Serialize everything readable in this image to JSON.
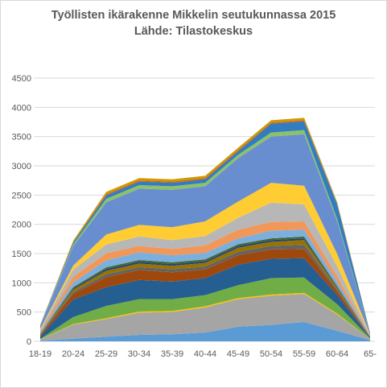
{
  "chart_data": {
    "type": "area",
    "stacked": true,
    "title": "Työllisten ikärakenne Mikkelin seutukunnassa 2015",
    "subtitle": "Lähde: Tilastokeskus",
    "categories": [
      "18-19",
      "20-24",
      "25-29",
      "30-34",
      "35-39",
      "40-44",
      "45-49",
      "50-54",
      "55-59",
      "60-64",
      "65-"
    ],
    "ylim": [
      0,
      4500
    ],
    "yticks": [
      0,
      500,
      1000,
      1500,
      2000,
      2500,
      3000,
      3500,
      4000,
      4500
    ],
    "grid": true,
    "legend": "none",
    "series": [
      {
        "color": "#5b9bd5",
        "values": [
          10,
          45,
          80,
          110,
          120,
          150,
          250,
          280,
          330,
          180,
          20
        ]
      },
      {
        "color": "#a5a5a5",
        "values": [
          20,
          240,
          300,
          380,
          380,
          430,
          470,
          500,
          480,
          280,
          20
        ]
      },
      {
        "color": "#ffc000",
        "values": [
          2,
          10,
          15,
          20,
          20,
          20,
          20,
          20,
          20,
          15,
          2
        ]
      },
      {
        "color": "#70ad47",
        "values": [
          10,
          120,
          210,
          210,
          200,
          190,
          220,
          280,
          260,
          160,
          10
        ]
      },
      {
        "color": "#255e91",
        "values": [
          40,
          300,
          320,
          330,
          300,
          290,
          350,
          330,
          330,
          160,
          10
        ]
      },
      {
        "color": "#9e480e",
        "values": [
          20,
          100,
          170,
          170,
          160,
          150,
          160,
          160,
          160,
          60,
          8
        ]
      },
      {
        "color": "#636363",
        "values": [
          10,
          30,
          50,
          50,
          50,
          50,
          60,
          60,
          70,
          30,
          5
        ]
      },
      {
        "color": "#997300",
        "values": [
          10,
          40,
          60,
          60,
          60,
          60,
          70,
          70,
          80,
          30,
          5
        ]
      },
      {
        "color": "#264478",
        "values": [
          5,
          20,
          30,
          30,
          30,
          30,
          30,
          30,
          30,
          15,
          3
        ]
      },
      {
        "color": "#43682b",
        "values": [
          5,
          20,
          30,
          30,
          30,
          30,
          30,
          30,
          30,
          15,
          3
        ]
      },
      {
        "color": "#7cafdd",
        "values": [
          20,
          80,
          120,
          130,
          120,
          110,
          100,
          130,
          120,
          80,
          5
        ]
      },
      {
        "color": "#f1975a",
        "values": [
          20,
          100,
          120,
          110,
          110,
          130,
          150,
          150,
          140,
          90,
          5
        ]
      },
      {
        "color": "#b7b7b7",
        "values": [
          25,
          120,
          150,
          160,
          150,
          160,
          200,
          330,
          290,
          170,
          10
        ]
      },
      {
        "color": "#ffcd33",
        "values": [
          15,
          70,
          170,
          200,
          220,
          250,
          280,
          340,
          320,
          210,
          10
        ]
      },
      {
        "color": "#698ed0",
        "values": [
          55,
          330,
          550,
          620,
          640,
          600,
          740,
          790,
          880,
          560,
          25
        ]
      },
      {
        "color": "#8cc168",
        "values": [
          5,
          30,
          60,
          60,
          60,
          60,
          60,
          70,
          70,
          40,
          3
        ]
      },
      {
        "color": "#327dc2",
        "values": [
          5,
          30,
          60,
          60,
          60,
          60,
          60,
          150,
          150,
          250,
          3
        ]
      },
      {
        "color": "#d26012",
        "values": [
          2,
          10,
          20,
          20,
          20,
          20,
          20,
          20,
          20,
          10,
          2
        ]
      },
      {
        "color": "#cc9a00",
        "values": [
          5,
          25,
          40,
          40,
          40,
          40,
          40,
          40,
          40,
          25,
          2
        ]
      }
    ]
  }
}
